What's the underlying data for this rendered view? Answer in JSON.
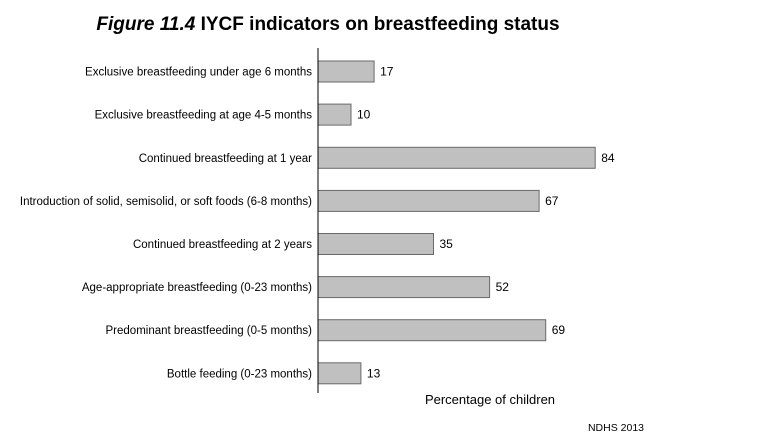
{
  "title": {
    "figure_label": "Figure 11.4",
    "text": "IYCF indicators on breastfeeding status"
  },
  "source": "NDHS 2013",
  "chart_data": {
    "type": "bar",
    "orientation": "horizontal",
    "categories": [
      "Exclusive breastfeeding under age 6 months",
      "Exclusive breastfeeding at age 4-5 months",
      "Continued breastfeeding at 1 year",
      "Introduction of solid, semisolid, or soft foods (6-8 months)",
      "Continued breastfeeding at 2 years",
      "Age-appropriate breastfeeding (0-23 months)",
      "Predominant breastfeeding (0-5 months)",
      "Bottle feeding (0-23 months)"
    ],
    "values": [
      17,
      10,
      84,
      67,
      35,
      52,
      69,
      13
    ],
    "xlabel": "Percentage of children",
    "ylabel": "",
    "xlim": [
      0,
      100
    ],
    "bar_color": "#c0c0c0",
    "bar_edge_color": "#6a6a6a",
    "data_labels": true,
    "grid": false
  }
}
